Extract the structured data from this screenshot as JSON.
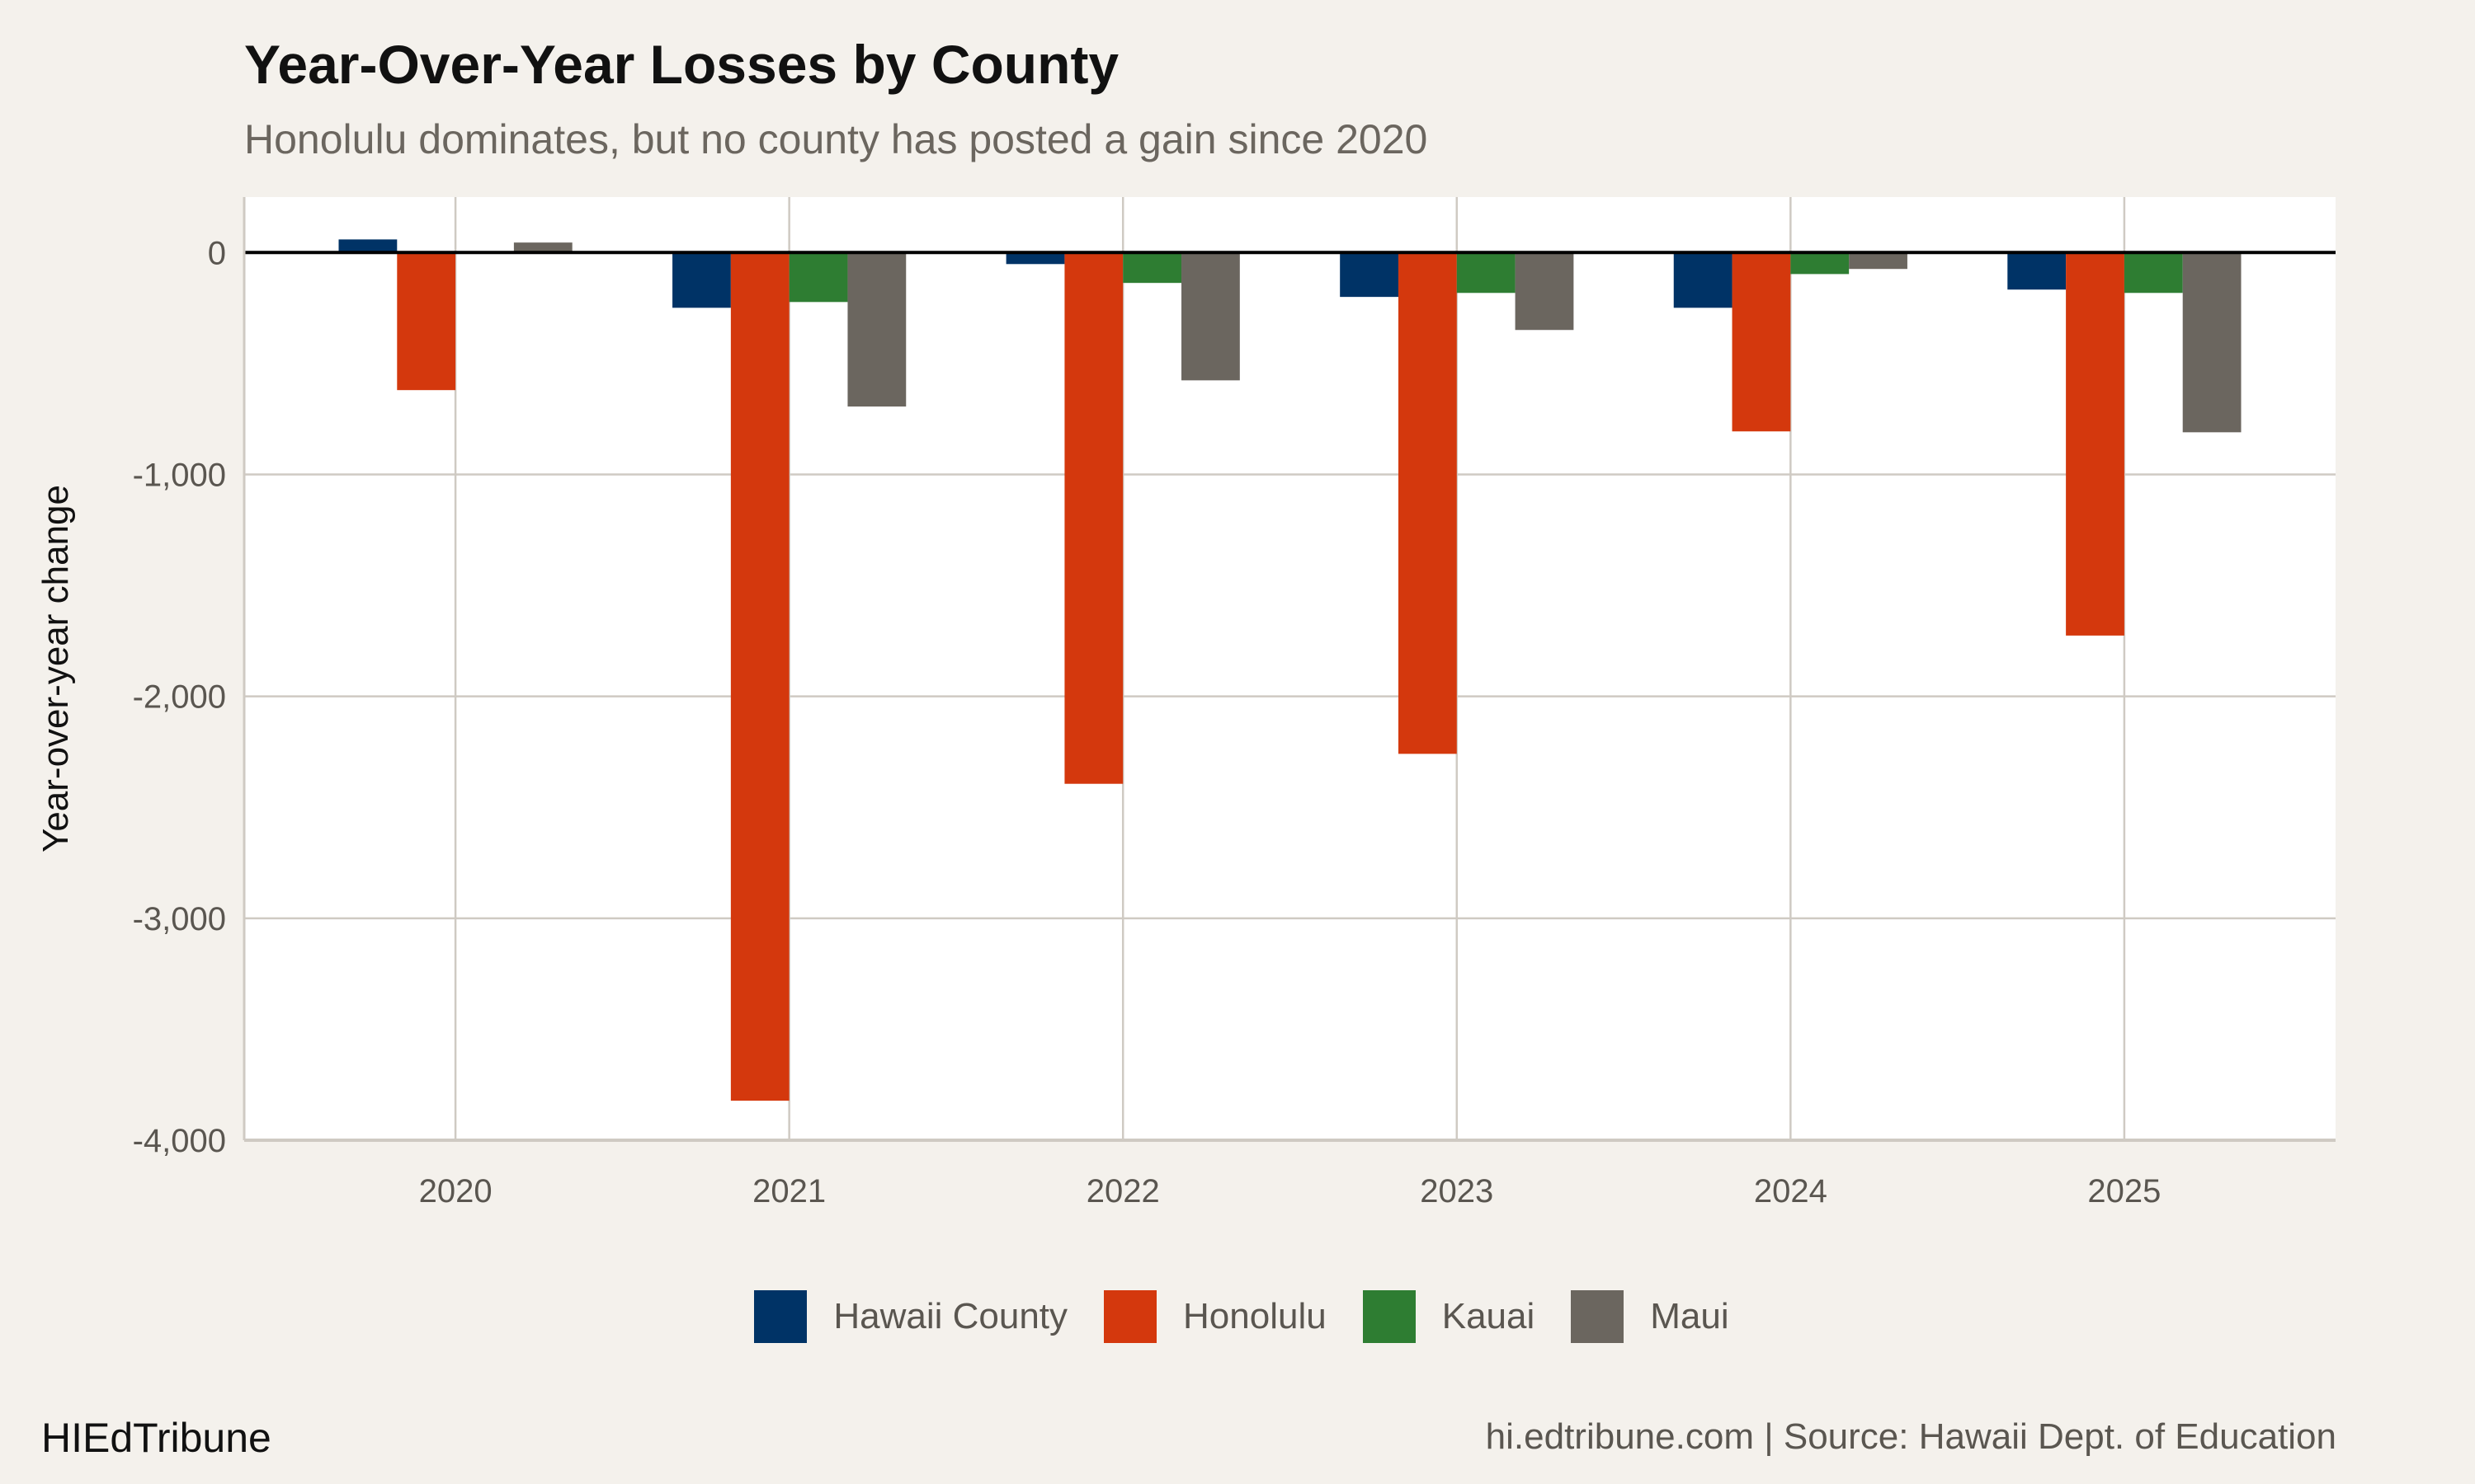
{
  "header": {
    "title": "Year-Over-Year Losses by County",
    "subtitle": "Honolulu dominates, but no county has posted a gain since 2020"
  },
  "footer": {
    "brand": "HIEdTribune",
    "source": "hi.edtribune.com | Source: Hawaii Dept. of Education"
  },
  "chart_data": {
    "type": "bar",
    "title": "Year-Over-Year Losses by County",
    "xlabel": "",
    "ylabel": "Year-over-year change",
    "categories": [
      "2020",
      "2021",
      "2022",
      "2023",
      "2024",
      "2025"
    ],
    "ylim": [
      -4000,
      250
    ],
    "yticks": [
      0,
      -1000,
      -2000,
      -3000,
      -4000
    ],
    "ytick_labels": [
      "0",
      "-1,000",
      "-2,000",
      "-3,000",
      "-4,000"
    ],
    "grid": true,
    "legend_position": "bottom",
    "series": [
      {
        "name": "Hawaii County",
        "color": "#003366",
        "values": [
          59,
          -249,
          -52,
          -200,
          -249,
          -167
        ]
      },
      {
        "name": "Honolulu",
        "color": "#d4380d",
        "values": [
          -620,
          -3822,
          -2394,
          -2259,
          -806,
          -1726
        ]
      },
      {
        "name": "Kauai",
        "color": "#2e7d32",
        "values": [
          0,
          -223,
          -137,
          -182,
          -97,
          -182
        ]
      },
      {
        "name": "Maui",
        "color": "#6b665f",
        "values": [
          45,
          -694,
          -576,
          -349,
          -74,
          -810
        ]
      }
    ]
  }
}
